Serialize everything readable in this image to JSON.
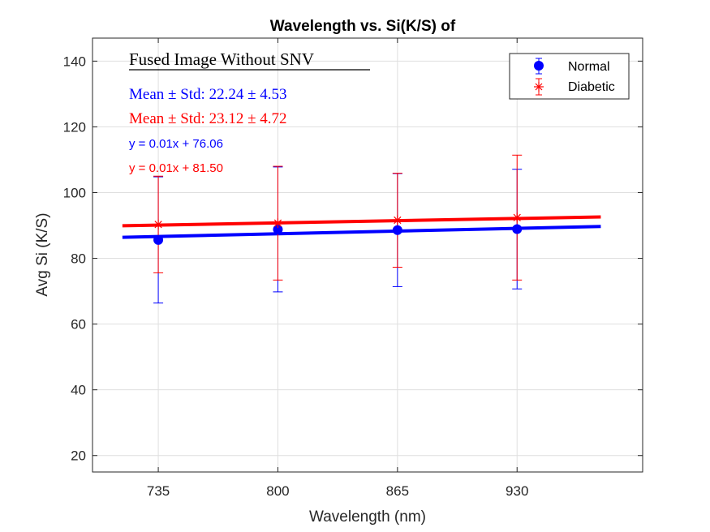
{
  "chart_data": {
    "type": "scatter",
    "title": "Wavelength vs. Si(K/S) of",
    "xlabel": "Wavelength (nm)",
    "ylabel": "Avg Si (K/S)",
    "categories": [
      "735",
      "800",
      "865",
      "930"
    ],
    "xlim": [
      0.45,
      5.05
    ],
    "ylim": [
      15,
      147
    ],
    "yticks": [
      20,
      40,
      60,
      80,
      100,
      120,
      140
    ],
    "grid": true,
    "legend_position": "top-right",
    "series": [
      {
        "name": "Normal",
        "marker": "circle",
        "color": "#0000ff",
        "values": [
          85.6,
          88.8,
          88.6,
          88.9
        ],
        "error": [
          19.2,
          19.0,
          17.2,
          18.2
        ],
        "fit": {
          "slope": 0.01,
          "intercept": 76.06,
          "label": "y = 0.01x + 76.06",
          "x_range": [
            0.7,
            4.7
          ],
          "y_range": [
            86.4,
            89.7
          ]
        }
      },
      {
        "name": "Diabetic",
        "marker": "asterisk",
        "color": "#ff0000",
        "values": [
          90.3,
          90.7,
          91.6,
          92.4
        ],
        "error": [
          14.7,
          17.3,
          14.3,
          19.0
        ],
        "fit": {
          "slope": 0.01,
          "intercept": 81.5,
          "label": "y = 0.01x + 81.50",
          "x_range": [
            0.7,
            4.7
          ],
          "y_range": [
            89.9,
            92.6
          ]
        }
      }
    ],
    "annotations": {
      "heading": "Fused Image Without SNV",
      "normal_stats": "Mean ± Std: 22.24 ± 4.53",
      "diabetic_stats": "Mean ± Std: 23.12 ± 4.72",
      "normal_fit": "y = 0.01x + 76.06",
      "diabetic_fit": "y = 0.01x + 81.50"
    }
  }
}
